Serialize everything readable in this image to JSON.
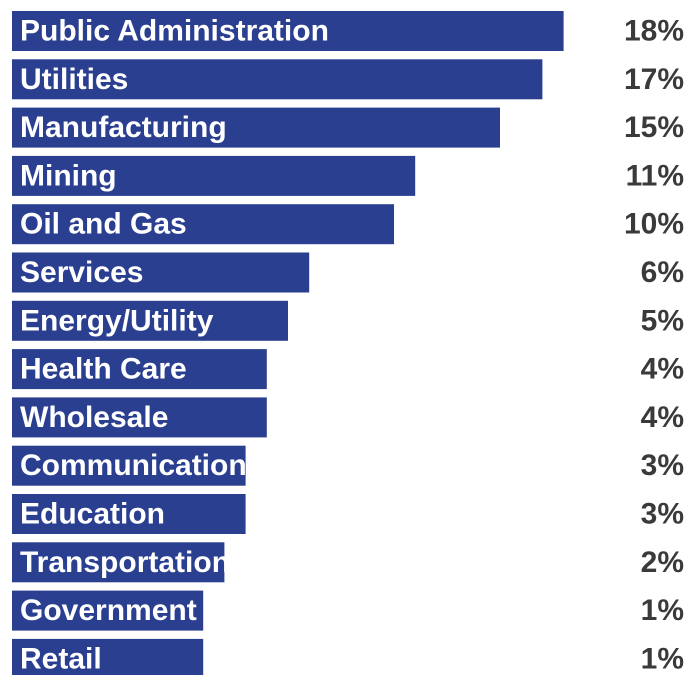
{
  "chart_data": {
    "type": "bar",
    "orientation": "horizontal",
    "categories": [
      "Public Administration",
      "Utilities",
      "Manufacturing",
      "Mining",
      "Oil and Gas",
      "Services",
      "Energy/Utility",
      "Health Care",
      "Wholesale",
      "Communications",
      "Education",
      "Transportation",
      "Government",
      "Retail"
    ],
    "values": [
      18,
      17,
      15,
      11,
      10,
      6,
      5,
      4,
      4,
      3,
      3,
      2,
      1,
      1
    ],
    "value_labels": [
      "18%",
      "17%",
      "15%",
      "11%",
      "10%",
      "6%",
      "5%",
      "4%",
      "4%",
      "3%",
      "3%",
      "2%",
      "1%",
      "1%"
    ],
    "unit": "%",
    "bar_color": "#2a3f8f",
    "label_color": "#ffffff",
    "value_color": "#3a3a3a",
    "title": "",
    "xlabel": "",
    "ylabel": "",
    "grid": false,
    "legend": "none"
  }
}
